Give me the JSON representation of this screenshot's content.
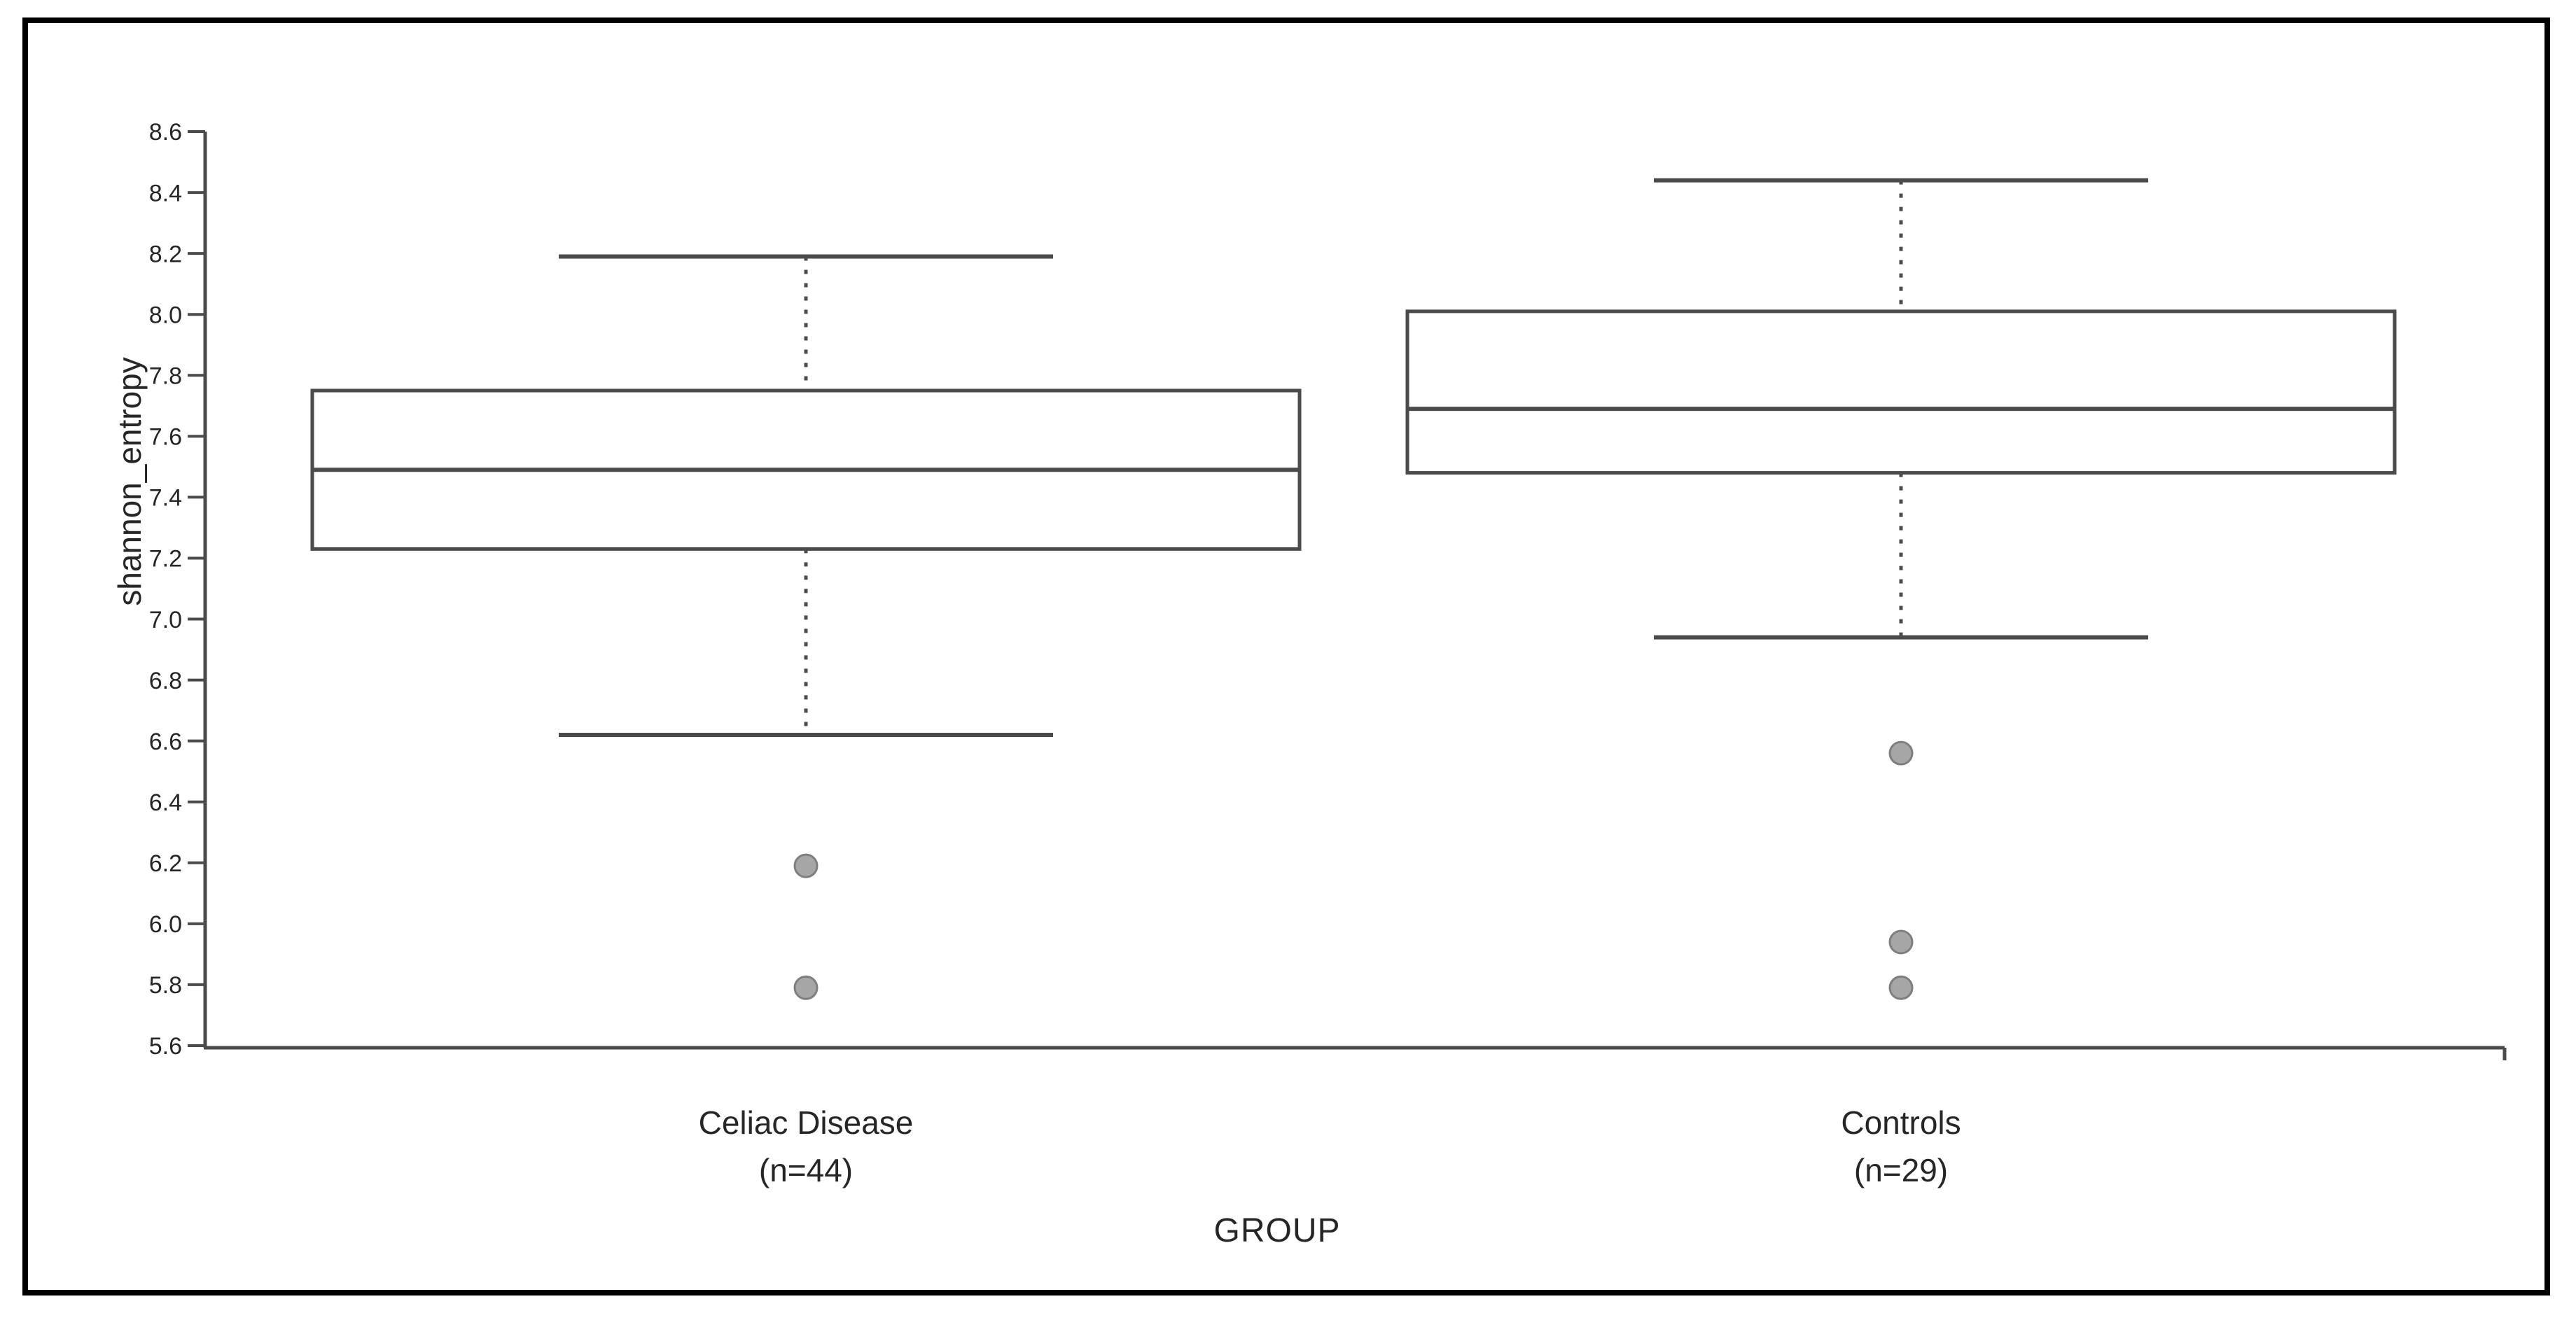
{
  "chart_data": {
    "type": "boxplot",
    "xlabel": "GROUP",
    "ylabel": "shannon_entropy",
    "ylim": [
      5.6,
      8.6
    ],
    "ytick_step": 0.2,
    "ytick_labels": [
      "8.6",
      "8.4",
      "8.2",
      "8.0",
      "7.8",
      "7.6",
      "7.4",
      "7.2",
      "7.0",
      "6.8",
      "6.6",
      "6.4",
      "6.2",
      "6.0",
      "5.8",
      "5.6"
    ],
    "grid": "off",
    "legend": "none",
    "groups": [
      {
        "label": "Celiac Disease",
        "sublabel": "(n=44)",
        "whisker_low": 6.62,
        "q1": 7.23,
        "median": 7.49,
        "q3": 7.75,
        "whisker_high": 8.19,
        "outliers": [
          6.19,
          5.79
        ]
      },
      {
        "label": "Controls",
        "sublabel": "(n=29)",
        "whisker_low": 6.94,
        "q1": 7.48,
        "median": 7.69,
        "q3": 8.01,
        "whisker_high": 8.44,
        "outliers": [
          6.56,
          5.94,
          5.79
        ]
      }
    ],
    "colors": {
      "line": "#4b4b4b",
      "box_fill": "#ffffff",
      "outlier_fill": "#a6a6a6",
      "outlier_stroke": "#7f7f7f",
      "text": "#262626",
      "frame_border": "#000000"
    }
  }
}
